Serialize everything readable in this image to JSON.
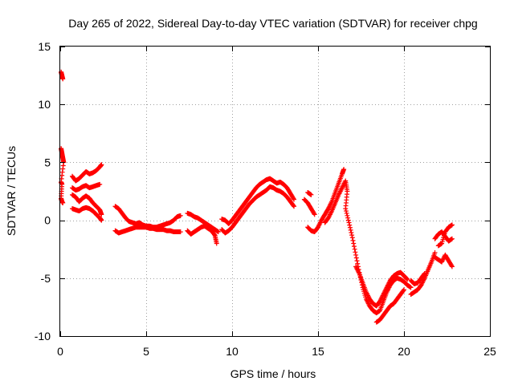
{
  "chart_data": {
    "type": "scatter",
    "title": "Day 265 of 2022, Sidereal Day-to-day VTEC variation (SDTVAR) for receiver chpg",
    "xlabel": "GPS time / hours",
    "ylabel": "SDTVAR / TECUs",
    "xlim": [
      0,
      25
    ],
    "ylim": [
      -10,
      15
    ],
    "xticks": [
      0,
      5,
      10,
      15,
      20,
      25
    ],
    "yticks": [
      -10,
      -5,
      0,
      5,
      10,
      15
    ],
    "grid": true,
    "marker": "plus",
    "color": "#ff0000",
    "series": [
      {
        "name": "SDTVAR",
        "points": [
          [
            0.05,
            12.8
          ],
          [
            0.1,
            12.5
          ],
          [
            0.15,
            12.2
          ],
          [
            0.05,
            6.2
          ],
          [
            0.1,
            5.8
          ],
          [
            0.15,
            5.4
          ],
          [
            0.2,
            5.0
          ],
          [
            0.05,
            3.3
          ],
          [
            0.1,
            3.1
          ],
          [
            0.05,
            1.9
          ],
          [
            0.1,
            1.6
          ],
          [
            0.15,
            1.5
          ],
          [
            0.7,
            3.8
          ],
          [
            0.9,
            3.4
          ],
          [
            1.1,
            3.6
          ],
          [
            1.3,
            3.9
          ],
          [
            1.5,
            4.2
          ],
          [
            1.7,
            4.0
          ],
          [
            1.9,
            4.1
          ],
          [
            2.1,
            4.3
          ],
          [
            2.3,
            4.6
          ],
          [
            2.4,
            4.8
          ],
          [
            0.7,
            2.8
          ],
          [
            0.9,
            2.6
          ],
          [
            1.1,
            2.7
          ],
          [
            1.3,
            2.9
          ],
          [
            1.5,
            3.0
          ],
          [
            1.7,
            2.8
          ],
          [
            1.9,
            2.9
          ],
          [
            2.1,
            3.0
          ],
          [
            2.3,
            3.1
          ],
          [
            0.7,
            2.2
          ],
          [
            0.9,
            2.0
          ],
          [
            1.1,
            1.6
          ],
          [
            1.3,
            1.9
          ],
          [
            1.5,
            2.1
          ],
          [
            1.7,
            1.9
          ],
          [
            1.9,
            1.5
          ],
          [
            2.1,
            1.2
          ],
          [
            2.3,
            0.9
          ],
          [
            2.4,
            0.5
          ],
          [
            0.7,
            1.0
          ],
          [
            0.9,
            0.9
          ],
          [
            1.1,
            0.8
          ],
          [
            1.3,
            1.0
          ],
          [
            1.5,
            1.1
          ],
          [
            1.7,
            1.0
          ],
          [
            1.9,
            0.8
          ],
          [
            2.1,
            0.5
          ],
          [
            2.3,
            0.2
          ],
          [
            2.4,
            0.0
          ],
          [
            3.2,
            1.2
          ],
          [
            3.4,
            1.0
          ],
          [
            3.6,
            0.6
          ],
          [
            3.8,
            0.2
          ],
          [
            4.0,
            -0.1
          ],
          [
            4.2,
            -0.2
          ],
          [
            4.4,
            -0.3
          ],
          [
            4.6,
            -0.2
          ],
          [
            4.8,
            -0.4
          ],
          [
            5.0,
            -0.5
          ],
          [
            5.2,
            -0.5
          ],
          [
            5.4,
            -0.6
          ],
          [
            5.6,
            -0.6
          ],
          [
            5.8,
            -0.5
          ],
          [
            6.0,
            -0.4
          ],
          [
            6.2,
            -0.3
          ],
          [
            6.4,
            -0.2
          ],
          [
            6.6,
            0.0
          ],
          [
            6.8,
            0.3
          ],
          [
            7.0,
            0.4
          ],
          [
            3.2,
            -0.9
          ],
          [
            3.4,
            -1.1
          ],
          [
            3.6,
            -1.0
          ],
          [
            3.8,
            -0.9
          ],
          [
            4.0,
            -0.8
          ],
          [
            4.2,
            -0.7
          ],
          [
            4.4,
            -0.6
          ],
          [
            4.6,
            -0.6
          ],
          [
            4.8,
            -0.6
          ],
          [
            5.0,
            -0.6
          ],
          [
            5.2,
            -0.7
          ],
          [
            5.4,
            -0.7
          ],
          [
            5.6,
            -0.8
          ],
          [
            5.8,
            -0.8
          ],
          [
            6.0,
            -0.8
          ],
          [
            6.2,
            -0.9
          ],
          [
            6.4,
            -0.9
          ],
          [
            6.6,
            -1.0
          ],
          [
            6.8,
            -1.0
          ],
          [
            7.0,
            -1.0
          ],
          [
            7.4,
            0.6
          ],
          [
            7.6,
            0.5
          ],
          [
            7.8,
            0.3
          ],
          [
            8.0,
            0.2
          ],
          [
            8.2,
            0.0
          ],
          [
            8.4,
            -0.2
          ],
          [
            8.6,
            -0.4
          ],
          [
            8.8,
            -0.6
          ],
          [
            9.0,
            -0.8
          ],
          [
            9.2,
            -1.0
          ],
          [
            7.4,
            -0.9
          ],
          [
            7.6,
            -1.2
          ],
          [
            7.8,
            -1.0
          ],
          [
            8.0,
            -0.8
          ],
          [
            8.2,
            -0.6
          ],
          [
            8.4,
            -0.5
          ],
          [
            8.6,
            -0.7
          ],
          [
            8.8,
            -0.9
          ],
          [
            9.0,
            -1.3
          ],
          [
            9.1,
            -2.0
          ],
          [
            9.4,
            0.1
          ],
          [
            9.6,
            0.0
          ],
          [
            9.8,
            -0.3
          ],
          [
            10.0,
            0.0
          ],
          [
            10.2,
            0.4
          ],
          [
            10.4,
            0.8
          ],
          [
            10.6,
            1.2
          ],
          [
            10.8,
            1.6
          ],
          [
            11.0,
            2.0
          ],
          [
            11.2,
            2.4
          ],
          [
            11.4,
            2.8
          ],
          [
            11.6,
            3.1
          ],
          [
            11.8,
            3.3
          ],
          [
            12.0,
            3.5
          ],
          [
            12.2,
            3.6
          ],
          [
            12.4,
            3.4
          ],
          [
            12.6,
            3.2
          ],
          [
            12.8,
            3.3
          ],
          [
            13.0,
            3.1
          ],
          [
            13.2,
            2.8
          ],
          [
            13.4,
            2.3
          ],
          [
            13.6,
            1.8
          ],
          [
            9.4,
            -0.8
          ],
          [
            9.6,
            -1.1
          ],
          [
            9.8,
            -0.9
          ],
          [
            10.0,
            -0.6
          ],
          [
            10.2,
            -0.2
          ],
          [
            10.4,
            0.2
          ],
          [
            10.6,
            0.6
          ],
          [
            10.8,
            1.0
          ],
          [
            11.0,
            1.4
          ],
          [
            11.2,
            1.7
          ],
          [
            11.4,
            2.0
          ],
          [
            11.6,
            2.2
          ],
          [
            11.8,
            2.4
          ],
          [
            12.0,
            2.6
          ],
          [
            12.2,
            2.9
          ],
          [
            12.4,
            2.8
          ],
          [
            12.6,
            2.6
          ],
          [
            12.8,
            2.5
          ],
          [
            13.0,
            2.3
          ],
          [
            13.2,
            2.0
          ],
          [
            13.4,
            1.6
          ],
          [
            13.6,
            1.2
          ],
          [
            14.2,
            1.8
          ],
          [
            14.4,
            1.5
          ],
          [
            14.6,
            1.0
          ],
          [
            14.8,
            0.5
          ],
          [
            14.4,
            2.4
          ],
          [
            14.6,
            2.2
          ],
          [
            14.4,
            -0.6
          ],
          [
            14.6,
            -0.9
          ],
          [
            14.8,
            -1.0
          ],
          [
            15.0,
            -0.6
          ],
          [
            15.2,
            0.0
          ],
          [
            15.4,
            0.5
          ],
          [
            15.6,
            1.0
          ],
          [
            15.8,
            1.6
          ],
          [
            16.0,
            2.4
          ],
          [
            16.2,
            3.2
          ],
          [
            16.4,
            4.0
          ],
          [
            16.5,
            4.4
          ],
          [
            15.4,
            -0.2
          ],
          [
            15.6,
            0.2
          ],
          [
            15.8,
            0.8
          ],
          [
            16.0,
            1.5
          ],
          [
            16.2,
            2.2
          ],
          [
            16.4,
            2.8
          ],
          [
            16.6,
            3.4
          ],
          [
            16.7,
            2.5
          ],
          [
            16.6,
            1.0
          ],
          [
            16.8,
            -0.2
          ],
          [
            17.0,
            -1.5
          ],
          [
            17.2,
            -3.0
          ],
          [
            17.4,
            -4.5
          ],
          [
            17.6,
            -5.8
          ],
          [
            17.8,
            -6.8
          ],
          [
            18.0,
            -7.4
          ],
          [
            18.2,
            -7.8
          ],
          [
            18.4,
            -8.0
          ],
          [
            18.6,
            -7.8
          ],
          [
            18.8,
            -7.0
          ],
          [
            19.0,
            -6.2
          ],
          [
            19.2,
            -5.6
          ],
          [
            19.4,
            -5.2
          ],
          [
            19.6,
            -5.0
          ],
          [
            19.8,
            -5.1
          ],
          [
            20.0,
            -5.3
          ],
          [
            20.2,
            -5.6
          ],
          [
            20.4,
            -5.8
          ],
          [
            17.2,
            -4.0
          ],
          [
            17.4,
            -4.6
          ],
          [
            17.6,
            -5.4
          ],
          [
            17.8,
            -6.2
          ],
          [
            18.0,
            -6.8
          ],
          [
            18.2,
            -7.2
          ],
          [
            18.4,
            -7.4
          ],
          [
            18.6,
            -7.0
          ],
          [
            18.8,
            -6.4
          ],
          [
            19.0,
            -5.8
          ],
          [
            19.2,
            -5.2
          ],
          [
            19.4,
            -4.8
          ],
          [
            19.6,
            -4.6
          ],
          [
            19.8,
            -4.5
          ],
          [
            20.0,
            -4.8
          ],
          [
            20.2,
            -5.1
          ],
          [
            18.4,
            -8.8
          ],
          [
            18.6,
            -8.6
          ],
          [
            18.8,
            -8.2
          ],
          [
            19.0,
            -7.8
          ],
          [
            19.2,
            -7.4
          ],
          [
            19.4,
            -7.2
          ],
          [
            19.6,
            -6.8
          ],
          [
            19.8,
            -6.4
          ],
          [
            20.0,
            -6.0
          ],
          [
            20.4,
            -6.4
          ],
          [
            20.6,
            -6.2
          ],
          [
            20.8,
            -6.0
          ],
          [
            21.0,
            -5.6
          ],
          [
            21.2,
            -5.0
          ],
          [
            21.4,
            -4.3
          ],
          [
            21.6,
            -3.6
          ],
          [
            21.8,
            -2.8
          ],
          [
            20.4,
            -5.2
          ],
          [
            20.6,
            -5.5
          ],
          [
            20.8,
            -5.4
          ],
          [
            21.0,
            -5.0
          ],
          [
            21.2,
            -4.6
          ],
          [
            21.8,
            -1.6
          ],
          [
            22.0,
            -1.2
          ],
          [
            22.2,
            -1.0
          ],
          [
            22.4,
            -1.4
          ],
          [
            22.6,
            -1.8
          ],
          [
            22.8,
            -1.6
          ],
          [
            21.8,
            -3.2
          ],
          [
            22.0,
            -3.4
          ],
          [
            22.2,
            -3.6
          ],
          [
            22.4,
            -3.0
          ],
          [
            22.6,
            -3.5
          ],
          [
            22.8,
            -4.0
          ],
          [
            22.0,
            -2.2
          ],
          [
            22.2,
            -2.0
          ],
          [
            22.4,
            -1.0
          ],
          [
            22.6,
            -0.6
          ],
          [
            22.8,
            -0.4
          ]
        ]
      }
    ]
  }
}
